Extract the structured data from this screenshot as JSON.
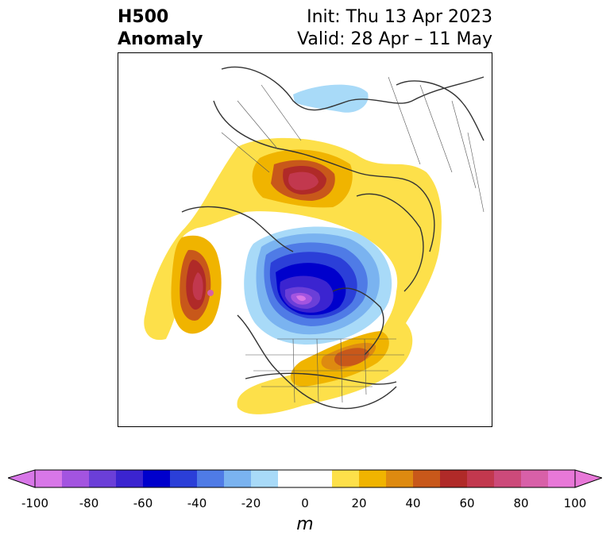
{
  "title": {
    "left_line1": "H500",
    "left_line2": "Anomaly",
    "right_line1": "Init: Thu 13 Apr 2023",
    "right_line2": "Valid: 28 Apr – 11 May"
  },
  "colorbar": {
    "unit": "m",
    "ticks": [
      "-100",
      "-80",
      "-60",
      "-40",
      "-20",
      "0",
      "20",
      "40",
      "60",
      "80",
      "100"
    ],
    "bins": [
      {
        "color": "#d877e8"
      },
      {
        "color": "#a354e0"
      },
      {
        "color": "#6b3fd8"
      },
      {
        "color": "#3b24d0"
      },
      {
        "color": "#0000cc"
      },
      {
        "color": "#2b3fd8"
      },
      {
        "color": "#4f7be6"
      },
      {
        "color": "#7ab3f0"
      },
      {
        "color": "#a8daf8"
      },
      {
        "color": "#ffffff"
      },
      {
        "color": "#ffffff"
      },
      {
        "color": "#fde04a"
      },
      {
        "color": "#f0b400"
      },
      {
        "color": "#de8a10"
      },
      {
        "color": "#c8581a"
      },
      {
        "color": "#b02a28"
      },
      {
        "color": "#c2384e"
      },
      {
        "color": "#cc4a7a"
      },
      {
        "color": "#d860a8"
      },
      {
        "color": "#e878d8"
      }
    ],
    "extend_low_color": "#d877e8",
    "extend_high_color": "#e878d8"
  }
}
